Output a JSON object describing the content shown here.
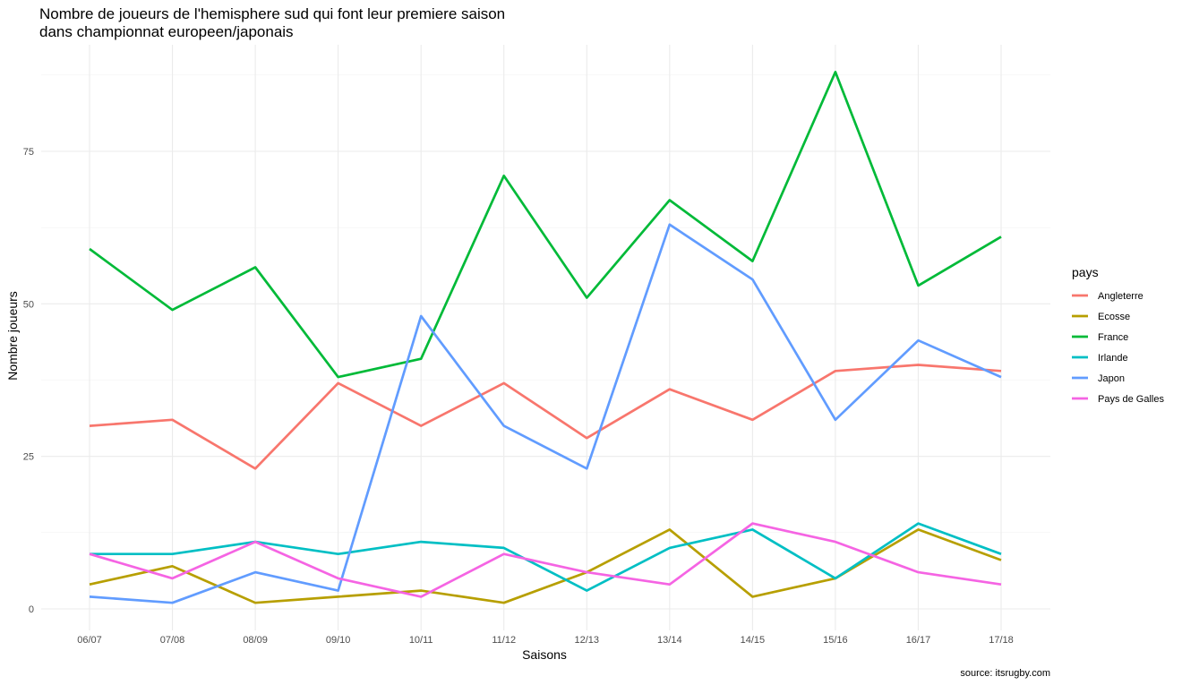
{
  "chart_data": {
    "type": "line",
    "title": [
      "Nombre de joueurs de l'hemisphere sud qui font leur premiere saison",
      "dans championnat europeen/japonais"
    ],
    "xlabel": "Saisons",
    "ylabel": "Nombre joueurs",
    "caption": "source: itsrugby.com",
    "categories": [
      "06/07",
      "07/08",
      "08/09",
      "09/10",
      "10/11",
      "11/12",
      "12/13",
      "13/14",
      "14/15",
      "15/16",
      "16/17",
      "17/18"
    ],
    "ylim": [
      -3.5,
      90
    ],
    "yticks": [
      0,
      25,
      50,
      75
    ],
    "grid": true,
    "legend": {
      "title": "pays",
      "position": "right"
    },
    "series": [
      {
        "name": "Angleterre",
        "color": "#F8766D",
        "values": [
          30,
          31,
          23,
          37,
          30,
          37,
          28,
          36,
          31,
          39,
          40,
          39
        ]
      },
      {
        "name": "Ecosse",
        "color": "#B79F00",
        "values": [
          4,
          7,
          1,
          2,
          3,
          1,
          6,
          13,
          2,
          5,
          13,
          8
        ]
      },
      {
        "name": "France",
        "color": "#00BA38",
        "values": [
          59,
          49,
          56,
          38,
          41,
          71,
          51,
          67,
          57,
          88,
          53,
          61
        ]
      },
      {
        "name": "Irlande",
        "color": "#00BFC4",
        "values": [
          9,
          9,
          11,
          9,
          11,
          10,
          3,
          10,
          13,
          5,
          14,
          9
        ]
      },
      {
        "name": "Japon",
        "color": "#619CFF",
        "values": [
          2,
          1,
          6,
          3,
          48,
          30,
          23,
          63,
          54,
          31,
          44,
          38
        ]
      },
      {
        "name": "Pays de Galles",
        "color": "#F564E3",
        "values": [
          9,
          5,
          11,
          5,
          2,
          9,
          6,
          4,
          14,
          11,
          6,
          4
        ]
      }
    ]
  }
}
